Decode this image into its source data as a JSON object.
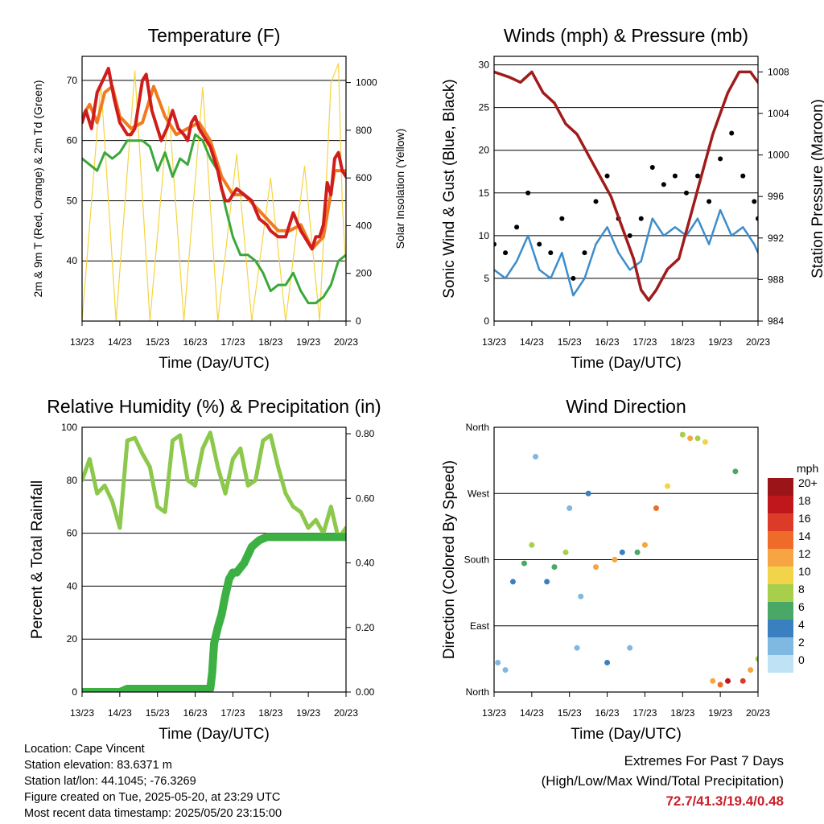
{
  "chart_data": [
    {
      "type": "line",
      "title": "Temperature (F)",
      "xlabel": "Time (Day/UTC)",
      "ylabel": "2m & 9m T (Red, Orange) & 2m Td (Green)",
      "y2label": "Solar Insolation (Yellow)",
      "x_ticks": [
        "13/23",
        "14/23",
        "15/23",
        "16/23",
        "17/23",
        "18/23",
        "19/23",
        "20/23"
      ],
      "ylim": [
        30,
        74
      ],
      "y_ticks": [
        40,
        50,
        60,
        70
      ],
      "y2lim": [
        0,
        1110
      ],
      "y2_ticks": [
        0,
        200,
        400,
        600,
        800,
        1000
      ],
      "grid": true,
      "series": [
        {
          "color": "#d01c1c",
          "x": [
            0,
            0.1,
            0.25,
            0.4,
            0.55,
            0.7,
            0.85,
            1.0,
            1.1,
            1.2,
            1.3,
            1.4,
            1.5,
            1.6,
            1.7,
            1.85,
            2.0,
            2.1,
            2.25,
            2.4,
            2.55,
            2.7,
            2.8,
            2.9,
            3.0,
            3.1,
            3.2,
            3.3,
            3.4,
            3.5,
            3.6,
            3.7,
            3.8,
            3.9,
            4.0,
            4.1,
            4.3,
            4.5,
            4.7,
            4.9,
            5.0,
            5.2,
            5.4,
            5.6,
            5.8,
            5.9,
            6.0,
            6.1,
            6.2,
            6.3,
            6.4,
            6.5,
            6.6,
            6.7,
            6.8,
            6.9,
            7.0
          ],
          "y": [
            63,
            65,
            62,
            68,
            70,
            72,
            67,
            63,
            62,
            61,
            61,
            62,
            66,
            70,
            71,
            65,
            62,
            60,
            62,
            65,
            62,
            61,
            60,
            63,
            64,
            62,
            61,
            60,
            59,
            57,
            55,
            52,
            50,
            50,
            51,
            52,
            51,
            50,
            47,
            46,
            45,
            44,
            44,
            48,
            45,
            44,
            43,
            42,
            44,
            44,
            46,
            53,
            51,
            57,
            58,
            55,
            54
          ]
        },
        {
          "color": "#f07a20",
          "x": [
            0,
            0.2,
            0.4,
            0.6,
            0.8,
            1.0,
            1.3,
            1.6,
            1.9,
            2.2,
            2.5,
            2.8,
            3.1,
            3.4,
            3.7,
            4.0,
            4.3,
            4.6,
            4.9,
            5.2,
            5.5,
            5.8,
            6.1,
            6.4,
            6.7,
            7.0
          ],
          "y": [
            64,
            66,
            63,
            68,
            69,
            64,
            62,
            63,
            69,
            64,
            61,
            62,
            63,
            60,
            54,
            51,
            51,
            49,
            47,
            45,
            45,
            46,
            42,
            44,
            55,
            55
          ]
        },
        {
          "color": "#3aa83a",
          "x": [
            0,
            0.2,
            0.4,
            0.6,
            0.8,
            1.0,
            1.2,
            1.4,
            1.6,
            1.8,
            2.0,
            2.2,
            2.4,
            2.6,
            2.8,
            3.0,
            3.2,
            3.4,
            3.6,
            3.8,
            4.0,
            4.2,
            4.4,
            4.6,
            4.8,
            5.0,
            5.2,
            5.4,
            5.6,
            5.8,
            6.0,
            6.2,
            6.4,
            6.6,
            6.8,
            7.0
          ],
          "y": [
            57,
            56,
            55,
            58,
            57,
            58,
            60,
            60,
            60,
            59,
            55,
            58,
            54,
            57,
            56,
            61,
            60,
            57,
            55,
            49,
            44,
            41,
            41,
            40,
            38,
            35,
            36,
            36,
            38,
            35,
            33,
            33,
            34,
            36,
            40,
            41
          ]
        }
      ],
      "secondary_series": [
        {
          "color": "#f5d442",
          "name": "",
          "x": [
            0,
            0.5,
            0.9,
            1.4,
            1.8,
            2.3,
            2.7,
            3.2,
            3.6,
            4.1,
            4.5,
            5.0,
            5.4,
            5.9,
            6.3,
            6.6,
            6.8,
            6.9,
            7.0
          ],
          "y": [
            0,
            1000,
            0,
            1050,
            0,
            900,
            0,
            980,
            0,
            700,
            0,
            600,
            0,
            650,
            0,
            1000,
            1080,
            500,
            200
          ]
        }
      ]
    },
    {
      "type": "scatter",
      "title": "Winds (mph) & Pressure (mb)",
      "xlabel": "Time (Day/UTC)",
      "ylabel": "Sonic Wind & Gust (Blue, Black)",
      "y2label": "Station Pressure (Maroon)",
      "x_ticks": [
        "13/23",
        "14/23",
        "15/23",
        "16/23",
        "17/23",
        "18/23",
        "19/23",
        "20/23"
      ],
      "ylim": [
        0,
        31
      ],
      "y_ticks": [
        0,
        5,
        10,
        15,
        20,
        25,
        30
      ],
      "y2lim": [
        984,
        1009.5
      ],
      "y2_ticks": [
        984,
        988,
        992,
        996,
        1000,
        1004,
        1008
      ],
      "grid": true,
      "series": [
        {
          "color": "#3c8dcc",
          "x": [
            0,
            0.3,
            0.6,
            0.9,
            1.2,
            1.5,
            1.8,
            2.1,
            2.4,
            2.7,
            3.0,
            3.3,
            3.6,
            3.9,
            4.2,
            4.5,
            4.8,
            5.1,
            5.4,
            5.7,
            6.0,
            6.3,
            6.6,
            6.9,
            7.0
          ],
          "y": [
            6,
            5,
            7,
            10,
            6,
            5,
            8,
            3,
            5,
            9,
            11,
            8,
            6,
            7,
            12,
            10,
            11,
            10,
            12,
            9,
            13,
            10,
            11,
            9,
            8
          ]
        },
        {
          "color": "#000000",
          "x": [
            0,
            0.3,
            0.6,
            0.9,
            1.2,
            1.5,
            1.8,
            2.1,
            2.4,
            2.7,
            3.0,
            3.3,
            3.6,
            3.9,
            4.2,
            4.5,
            4.8,
            5.1,
            5.4,
            5.7,
            6.0,
            6.3,
            6.6,
            6.9,
            7.0
          ],
          "y": [
            9,
            8,
            11,
            15,
            9,
            8,
            12,
            5,
            8,
            14,
            17,
            12,
            10,
            12,
            18,
            16,
            17,
            15,
            17,
            14,
            19,
            22,
            17,
            14,
            12
          ]
        }
      ],
      "secondary_series": [
        {
          "color": "#a01c1c",
          "name": "",
          "x": [
            0,
            0.4,
            0.7,
            1.0,
            1.3,
            1.6,
            1.9,
            2.2,
            2.5,
            2.8,
            3.1,
            3.4,
            3.7,
            3.9,
            4.1,
            4.3,
            4.6,
            4.9,
            5.2,
            5.5,
            5.8,
            6.0,
            6.2,
            6.5,
            6.8,
            7.0
          ],
          "y": [
            1008,
            1007.5,
            1007,
            1008,
            1006,
            1005,
            1003,
            1002,
            1000,
            998,
            996,
            993,
            990,
            987,
            986,
            987,
            989,
            990,
            994,
            998,
            1002,
            1004,
            1006,
            1008,
            1008,
            1007
          ]
        }
      ]
    },
    {
      "type": "line",
      "title": "Relative Humidity (%) & Precipitation (in)",
      "xlabel": "Time (Day/UTC)",
      "ylabel": "Percent & Total Rainfall",
      "x_ticks": [
        "13/23",
        "14/23",
        "15/23",
        "16/23",
        "17/23",
        "18/23",
        "19/23",
        "20/23"
      ],
      "ylim": [
        0,
        100
      ],
      "y_ticks": [
        0,
        20,
        40,
        60,
        80,
        100
      ],
      "y2lim": [
        0,
        0.82
      ],
      "y2_ticks": [
        "0.00",
        "0.20",
        "0.40",
        "0.60",
        "0.80"
      ],
      "grid": true,
      "series": [
        {
          "color": "#8cc84b",
          "x": [
            0,
            0.2,
            0.4,
            0.6,
            0.8,
            1.0,
            1.2,
            1.4,
            1.6,
            1.8,
            2.0,
            2.2,
            2.4,
            2.6,
            2.8,
            3.0,
            3.2,
            3.4,
            3.6,
            3.8,
            4.0,
            4.2,
            4.4,
            4.6,
            4.8,
            5.0,
            5.2,
            5.4,
            5.6,
            5.8,
            6.0,
            6.2,
            6.4,
            6.6,
            6.8,
            7.0
          ],
          "y": [
            80,
            88,
            75,
            78,
            72,
            62,
            95,
            96,
            90,
            85,
            70,
            68,
            95,
            97,
            80,
            78,
            92,
            98,
            85,
            75,
            88,
            92,
            78,
            80,
            95,
            97,
            85,
            75,
            70,
            68,
            62,
            65,
            60,
            70,
            58,
            62
          ]
        }
      ],
      "secondary_series": [
        {
          "color": "#3cb043",
          "name": "",
          "x": [
            0,
            0.5,
            1.0,
            1.2,
            1.5,
            2.0,
            2.5,
            3.0,
            3.4,
            3.45,
            3.5,
            3.6,
            3.7,
            3.8,
            3.9,
            4.0,
            4.1,
            4.3,
            4.5,
            4.7,
            4.9,
            5.0,
            5.5,
            6.0,
            6.5,
            7.0
          ],
          "y": [
            0,
            0,
            0,
            0.01,
            0.01,
            0.01,
            0.01,
            0.01,
            0.01,
            0.06,
            0.15,
            0.2,
            0.24,
            0.3,
            0.35,
            0.37,
            0.37,
            0.4,
            0.45,
            0.47,
            0.48,
            0.48,
            0.48,
            0.48,
            0.48,
            0.48
          ]
        }
      ]
    },
    {
      "type": "scatter",
      "title": "Wind Direction",
      "xlabel": "Time (Day/UTC)",
      "ylabel": "Direction (Colored By Speed)",
      "x_ticks": [
        "13/23",
        "14/23",
        "15/23",
        "16/23",
        "17/23",
        "18/23",
        "19/23",
        "20/23"
      ],
      "y_ticks": [
        "North",
        "East",
        "South",
        "West",
        "North"
      ],
      "ylim": [
        0,
        360
      ],
      "grid": true,
      "colorbar": {
        "title": "mph",
        "labels": [
          "20+",
          "18",
          "16",
          "14",
          "12",
          "10",
          "8",
          "6",
          "4",
          "2",
          "0"
        ],
        "colors": [
          "#9a1418",
          "#c0171d",
          "#dc3b2a",
          "#ef6c28",
          "#f7a543",
          "#f2d44b",
          "#a8cf4c",
          "#4aa867",
          "#3a80c0",
          "#7fb8e0",
          "#bfe2f5"
        ]
      },
      "x": [
        0.1,
        0.3,
        0.5,
        0.8,
        1.0,
        1.1,
        1.4,
        1.6,
        1.9,
        2.0,
        2.2,
        2.3,
        2.5,
        2.7,
        3.0,
        3.2,
        3.4,
        3.6,
        3.8,
        4.0,
        4.3,
        4.6,
        5.0,
        5.2,
        5.4,
        5.6,
        5.8,
        6.0,
        6.2,
        6.4,
        6.6,
        6.8,
        7.0
      ],
      "y": [
        40,
        30,
        150,
        175,
        200,
        320,
        150,
        170,
        190,
        250,
        60,
        130,
        270,
        170,
        40,
        180,
        190,
        60,
        190,
        200,
        250,
        280,
        350,
        345,
        345,
        340,
        15,
        10,
        15,
        300,
        15,
        30,
        45
      ],
      "speed": [
        3,
        2,
        4,
        6,
        9,
        3,
        4,
        6,
        9,
        3,
        2,
        2,
        4,
        12,
        4,
        12,
        5,
        2,
        6,
        12,
        14,
        10,
        9,
        12,
        8,
        10,
        12,
        14,
        18,
        6,
        16,
        12,
        8
      ]
    }
  ],
  "info": {
    "location": "Location: Cape Vincent",
    "elevation": "Station elevation: 83.6371 m",
    "latlon": "Station lat/lon: 44.1045; -76.3269",
    "created": "Figure created on Tue, 2025-05-20, at 23:29 UTC",
    "recent": "Most recent data timestamp: 2025/05/20 23:15:00"
  },
  "extremes": {
    "title": "Extremes For Past 7 Days",
    "subtitle": "(High/Low/Max Wind/Total Precipitation)",
    "values": "72.7/41.3/19.4/0.48"
  }
}
